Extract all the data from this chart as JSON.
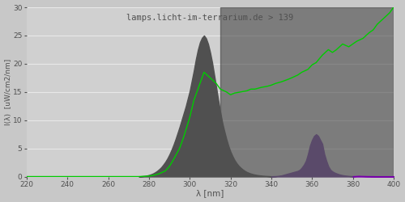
{
  "title": "lamps.licht-im-terrarium.de > 139",
  "xlabel": "λ [nm]",
  "ylabel": "I(λ)  [uW/cm2/nm]",
  "xlim": [
    220,
    400
  ],
  "ylim": [
    0,
    30
  ],
  "yticks": [
    0,
    5,
    10,
    15,
    20,
    25,
    30
  ],
  "xticks": [
    220,
    240,
    260,
    280,
    300,
    320,
    340,
    360,
    380,
    400
  ],
  "fig_bg_color": "#c8c8c8",
  "plot_bg_color": "#d0d0d0",
  "grid_color": "#e8e8e8",
  "title_color": "#505050",
  "axis_label_color": "#505050",
  "tick_color": "#505050",
  "gray_fill_color": "#505050",
  "dark_fill_color": "#383838",
  "purple_fill_color": "#5a4a6a",
  "violet_fill_color": "#7700aa",
  "green_line_color": "#00cc00",
  "uv_spectrum_x": [
    275,
    276,
    277,
    278,
    279,
    280,
    281,
    282,
    283,
    284,
    285,
    286,
    287,
    288,
    289,
    290,
    291,
    292,
    293,
    294,
    295,
    296,
    297,
    298,
    299,
    300,
    301,
    302,
    303,
    304,
    305,
    306,
    307,
    308,
    309,
    310,
    311,
    312,
    313,
    314,
    315,
    316,
    317,
    318,
    319,
    320,
    321,
    322,
    323,
    324,
    325,
    326,
    327,
    328,
    329,
    330,
    331,
    332,
    333,
    334,
    335,
    336,
    337,
    338,
    339,
    340
  ],
  "uv_spectrum_y": [
    0.02,
    0.05,
    0.08,
    0.12,
    0.18,
    0.28,
    0.4,
    0.55,
    0.75,
    1.0,
    1.3,
    1.65,
    2.1,
    2.6,
    3.2,
    3.9,
    4.7,
    5.6,
    6.6,
    7.7,
    8.8,
    10.0,
    11.2,
    12.4,
    13.8,
    15.2,
    17.0,
    18.8,
    20.8,
    22.5,
    23.8,
    24.6,
    25.0,
    24.5,
    23.5,
    22.0,
    20.2,
    18.0,
    15.8,
    13.5,
    11.4,
    9.5,
    8.0,
    6.6,
    5.4,
    4.4,
    3.6,
    2.9,
    2.35,
    1.9,
    1.55,
    1.25,
    1.0,
    0.8,
    0.65,
    0.52,
    0.42,
    0.34,
    0.27,
    0.22,
    0.18,
    0.14,
    0.11,
    0.09,
    0.07,
    0.05
  ],
  "dark_region_x": [
    315,
    316,
    317,
    318,
    319,
    320,
    321,
    322,
    323,
    324,
    325,
    326,
    327,
    328,
    329,
    330,
    331,
    332,
    333,
    334,
    335,
    336,
    337,
    338,
    339,
    340,
    341,
    342,
    343,
    344,
    345,
    346,
    347,
    348,
    349,
    350,
    351,
    352,
    353,
    354,
    355,
    356,
    357,
    358,
    359,
    360,
    361,
    362,
    363,
    364,
    365,
    366,
    367,
    368,
    369,
    370,
    371,
    372,
    373,
    374,
    375,
    376,
    377,
    378,
    379,
    380,
    381,
    382,
    383,
    384,
    385,
    386,
    387,
    388,
    389,
    390,
    391,
    392,
    393,
    394,
    395,
    396,
    397,
    398,
    399,
    400
  ],
  "dark_region_y": [
    11.4,
    9.5,
    8.0,
    6.6,
    5.4,
    4.4,
    3.6,
    2.9,
    2.35,
    1.9,
    1.55,
    1.25,
    1.0,
    0.8,
    0.65,
    0.52,
    0.42,
    0.34,
    0.27,
    0.22,
    0.18,
    0.14,
    0.11,
    0.09,
    0.07,
    0.05,
    0.05,
    0.06,
    0.07,
    0.1,
    0.15,
    0.2,
    0.3,
    0.4,
    0.5,
    0.6,
    0.7,
    0.8,
    0.9,
    1.0,
    1.2,
    1.6,
    2.1,
    2.8,
    4.0,
    5.5,
    6.5,
    7.2,
    7.5,
    7.2,
    6.5,
    5.8,
    4.0,
    2.8,
    1.8,
    1.2,
    0.9,
    0.7,
    0.55,
    0.42,
    0.32,
    0.24,
    0.18,
    0.14,
    0.1,
    0.08,
    0.08,
    0.1,
    0.12,
    0.1,
    0.09,
    0.08,
    0.07,
    0.07,
    0.06,
    0.06,
    0.05,
    0.05,
    0.05,
    0.05,
    0.05,
    0.05,
    0.05,
    0.05,
    0.05,
    0.05
  ],
  "purple_region_x": [
    340,
    341,
    342,
    343,
    344,
    345,
    346,
    347,
    348,
    349,
    350,
    351,
    352,
    353,
    354,
    355,
    356,
    357,
    358,
    359,
    360,
    361,
    362,
    363,
    364,
    365,
    366,
    367,
    368,
    369,
    370,
    371,
    372,
    373,
    374,
    375,
    376,
    377,
    378,
    379,
    380
  ],
  "purple_region_y": [
    0.05,
    0.06,
    0.07,
    0.1,
    0.15,
    0.2,
    0.3,
    0.4,
    0.5,
    0.6,
    0.7,
    0.8,
    0.9,
    1.0,
    1.2,
    1.6,
    2.1,
    2.8,
    4.0,
    5.5,
    6.5,
    7.2,
    7.5,
    7.2,
    6.5,
    5.8,
    4.0,
    2.8,
    1.8,
    1.2,
    0.9,
    0.7,
    0.55,
    0.42,
    0.32,
    0.24,
    0.18,
    0.14,
    0.1,
    0.08,
    0.06
  ],
  "violet_region_x": [
    380,
    381,
    382,
    383,
    384,
    385,
    386,
    387,
    388,
    389,
    390,
    391,
    392,
    393,
    394,
    395,
    396,
    397,
    398,
    399,
    400
  ],
  "violet_region_y": [
    0.06,
    0.08,
    0.1,
    0.12,
    0.1,
    0.09,
    0.08,
    0.07,
    0.07,
    0.06,
    0.06,
    0.05,
    0.05,
    0.05,
    0.05,
    0.05,
    0.05,
    0.05,
    0.05,
    0.05,
    0.05
  ],
  "green_line_x": [
    220,
    240,
    260,
    275,
    278,
    280,
    282,
    285,
    288,
    290,
    292,
    295,
    297,
    300,
    302,
    305,
    307,
    310,
    313,
    315,
    318,
    320,
    322,
    325,
    328,
    330,
    332,
    335,
    338,
    340,
    342,
    345,
    348,
    350,
    353,
    355,
    358,
    360,
    362,
    365,
    368,
    370,
    372,
    375,
    378,
    380,
    382,
    385,
    388,
    390,
    392,
    395,
    398,
    400
  ],
  "green_line_y": [
    0.0,
    0.0,
    0.0,
    0.0,
    0.05,
    0.1,
    0.2,
    0.5,
    1.0,
    1.8,
    3.0,
    5.0,
    7.0,
    10.5,
    13.5,
    16.5,
    18.5,
    17.5,
    16.5,
    15.5,
    15.0,
    14.5,
    14.8,
    15.0,
    15.2,
    15.5,
    15.5,
    15.8,
    16.0,
    16.2,
    16.5,
    16.8,
    17.2,
    17.5,
    18.0,
    18.5,
    19.0,
    19.8,
    20.2,
    21.5,
    22.5,
    22.0,
    22.5,
    23.5,
    23.0,
    23.5,
    24.0,
    24.5,
    25.5,
    26.0,
    27.0,
    28.0,
    29.0,
    30.0
  ]
}
